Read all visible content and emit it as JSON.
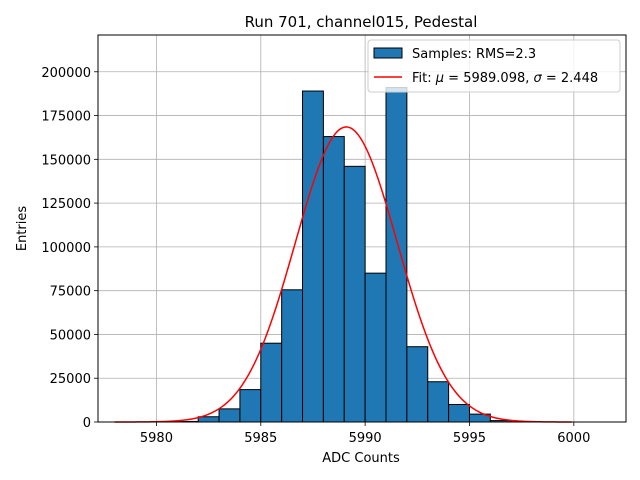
{
  "chart_data": {
    "type": "bar",
    "title": "Run 701, channel015, Pedestal",
    "xlabel": "ADC Counts",
    "ylabel": "Entries",
    "xlim": [
      5977.2,
      6002.5
    ],
    "ylim": [
      0,
      221000
    ],
    "x_ticks": [
      5980,
      5985,
      5990,
      5995,
      6000
    ],
    "x_tick_labels": [
      "5980",
      "5985",
      "5990",
      "5995",
      "6000"
    ],
    "y_ticks": [
      0,
      25000,
      50000,
      75000,
      100000,
      125000,
      150000,
      175000,
      200000
    ],
    "y_tick_labels": [
      "0",
      "25000",
      "50000",
      "75000",
      "100000",
      "125000",
      "150000",
      "175000",
      "200000"
    ],
    "grid": true,
    "legend_position": "top-right",
    "histogram": {
      "name": "Samples: RMS=2.3",
      "bin_width": 1,
      "bins": [
        {
          "x0": 5981,
          "value": 300
        },
        {
          "x0": 5982,
          "value": 3000
        },
        {
          "x0": 5983,
          "value": 7500
        },
        {
          "x0": 5984,
          "value": 18500
        },
        {
          "x0": 5985,
          "value": 45000
        },
        {
          "x0": 5986,
          "value": 75500
        },
        {
          "x0": 5987,
          "value": 189000
        },
        {
          "x0": 5988,
          "value": 163000
        },
        {
          "x0": 5989,
          "value": 146000
        },
        {
          "x0": 5990,
          "value": 85000
        },
        {
          "x0": 5991,
          "value": 191000
        },
        {
          "x0": 5992,
          "value": 43000
        },
        {
          "x0": 5993,
          "value": 23000
        },
        {
          "x0": 5994,
          "value": 10000
        },
        {
          "x0": 5995,
          "value": 4500
        },
        {
          "x0": 5996,
          "value": 800
        },
        {
          "x0": 5997,
          "value": 150
        }
      ],
      "color": "#1f77b4",
      "edge_color": "#000000"
    },
    "fit": {
      "name": "Fit: μ = 5989.098, σ = 2.448",
      "legend_prefix": "Fit: ",
      "mu_symbol": "μ",
      "mu_text": " = 5989.098, ",
      "sigma_symbol": "σ",
      "sigma_text": " = 2.448",
      "mu": 5989.098,
      "sigma": 2.448,
      "amplitude": 168500,
      "x_range": [
        5978,
        5999.9
      ],
      "color": "#ff0000"
    }
  }
}
